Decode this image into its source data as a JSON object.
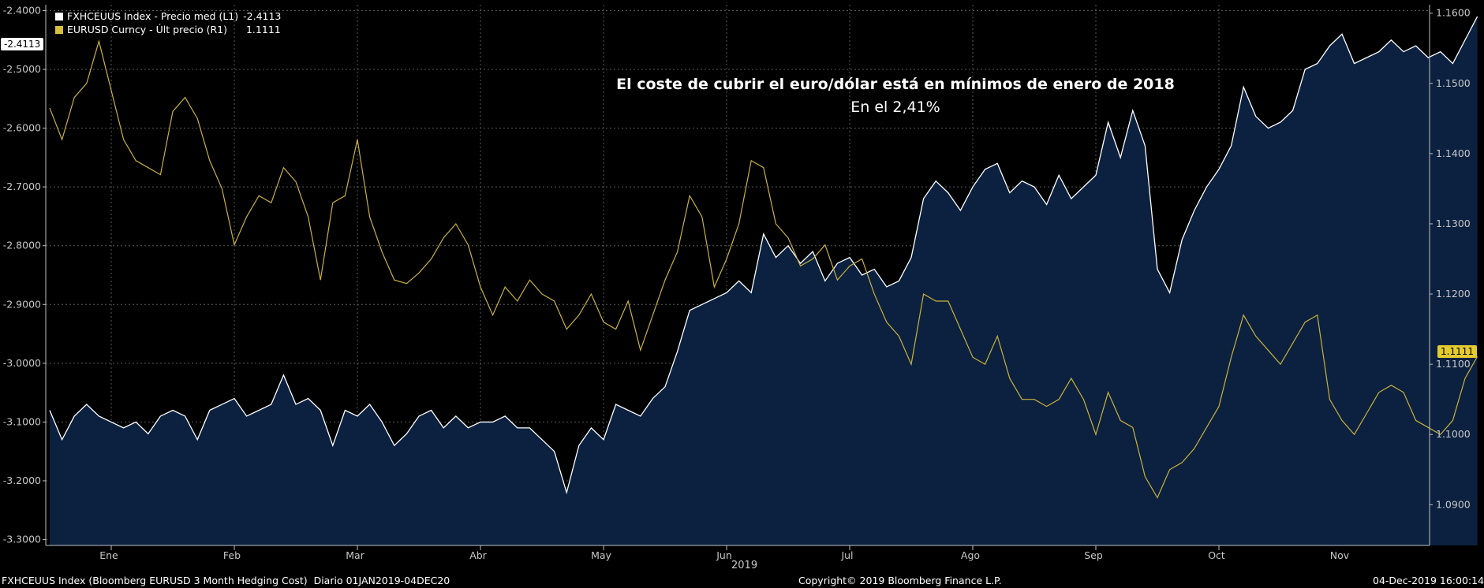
{
  "legend": {
    "items": [
      {
        "label": "FXHCEUUS Index - Precio med (L1)",
        "value": "-2.4113",
        "color": "#ffffff"
      },
      {
        "label": "EURUSD Curncy - Últ precio (R1)",
        "value": "1.1111",
        "color": "#d9c13a"
      }
    ]
  },
  "title": "El coste de cubrir el euro/dólar está en mínimos de enero de 2018",
  "subtitle": "En el 2,41%",
  "badges": {
    "left": "-2.4113",
    "right": "1.1111"
  },
  "year_label": "2019",
  "footer": {
    "left": "FXHCEUUS Index (Bloomberg EURUSD 3 Month Hedging Cost)  Diario 01JAN2019-04DEC20",
    "center": "Copyright© 2019 Bloomberg Finance L.P.",
    "right": "04-Dec-2019 16:00:14"
  },
  "colors": {
    "background": "#000000",
    "area_fill": "#0c2140",
    "hedge_line": "#ffffff",
    "eurusd_line": "#c9b23c",
    "grid": "#5a5a5a"
  },
  "chart_data": {
    "type": "line",
    "x_labels": [
      "Ene",
      "Feb",
      "Mar",
      "Abr",
      "May",
      "Jun",
      "Jul",
      "Ago",
      "Sep",
      "Oct",
      "Nov"
    ],
    "x_range": [
      0,
      11.6
    ],
    "left_axis": {
      "range": [
        -3.31,
        -2.39
      ],
      "ticks": [
        "-2.4000",
        "-2.5000",
        "-2.6000",
        "-2.7000",
        "-2.8000",
        "-2.9000",
        "-3.0000",
        "-3.1000",
        "-3.2000",
        "-3.3000"
      ]
    },
    "right_axis": {
      "range": [
        1.0842,
        1.1612
      ],
      "ticks": [
        "1.0900",
        "1.1000",
        "1.1100",
        "1.1200",
        "1.1300",
        "1.1400",
        "1.1500",
        "1.1600"
      ]
    },
    "grid": true,
    "series": [
      {
        "name": "FXHCEUUS Index - Precio med (L1)",
        "axis": "left",
        "style": "area",
        "x": [
          0,
          0.1,
          0.2,
          0.3,
          0.4,
          0.5,
          0.6,
          0.7,
          0.8,
          0.9,
          1.0,
          1.1,
          1.2,
          1.3,
          1.4,
          1.5,
          1.6,
          1.7,
          1.8,
          1.9,
          2.0,
          2.1,
          2.2,
          2.3,
          2.4,
          2.5,
          2.6,
          2.7,
          2.8,
          2.9,
          3.0,
          3.1,
          3.2,
          3.3,
          3.4,
          3.5,
          3.6,
          3.7,
          3.8,
          3.9,
          4.0,
          4.1,
          4.2,
          4.3,
          4.4,
          4.5,
          4.6,
          4.7,
          4.8,
          4.9,
          5.0,
          5.1,
          5.2,
          5.3,
          5.4,
          5.5,
          5.6,
          5.7,
          5.8,
          5.9,
          6.0,
          6.1,
          6.2,
          6.3,
          6.4,
          6.5,
          6.6,
          6.7,
          6.8,
          6.9,
          7.0,
          7.1,
          7.2,
          7.3,
          7.4,
          7.5,
          7.6,
          7.7,
          7.8,
          7.9,
          8.0,
          8.1,
          8.2,
          8.3,
          8.4,
          8.5,
          8.6,
          8.7,
          8.8,
          8.9,
          9.0,
          9.1,
          9.2,
          9.3,
          9.4,
          9.5,
          9.6,
          9.7,
          9.8,
          9.9,
          10.0,
          10.1,
          10.2,
          10.3,
          10.4,
          10.5,
          10.6,
          10.7,
          10.8,
          10.9,
          11.0,
          11.1,
          11.2,
          11.3,
          11.4,
          11.5,
          11.6
        ],
        "values": [
          -3.08,
          -3.13,
          -3.09,
          -3.07,
          -3.09,
          -3.1,
          -3.11,
          -3.1,
          -3.12,
          -3.09,
          -3.08,
          -3.09,
          -3.13,
          -3.08,
          -3.07,
          -3.06,
          -3.09,
          -3.08,
          -3.07,
          -3.02,
          -3.07,
          -3.06,
          -3.08,
          -3.14,
          -3.08,
          -3.09,
          -3.07,
          -3.1,
          -3.14,
          -3.12,
          -3.09,
          -3.08,
          -3.11,
          -3.09,
          -3.11,
          -3.1,
          -3.1,
          -3.09,
          -3.11,
          -3.11,
          -3.13,
          -3.15,
          -3.22,
          -3.14,
          -3.11,
          -3.13,
          -3.07,
          -3.08,
          -3.09,
          -3.06,
          -3.04,
          -2.98,
          -2.91,
          -2.9,
          -2.89,
          -2.88,
          -2.86,
          -2.88,
          -2.78,
          -2.82,
          -2.8,
          -2.83,
          -2.81,
          -2.86,
          -2.83,
          -2.82,
          -2.85,
          -2.84,
          -2.87,
          -2.86,
          -2.82,
          -2.72,
          -2.69,
          -2.71,
          -2.74,
          -2.7,
          -2.67,
          -2.66,
          -2.71,
          -2.69,
          -2.7,
          -2.73,
          -2.68,
          -2.72,
          -2.7,
          -2.68,
          -2.59,
          -2.65,
          -2.57,
          -2.63,
          -2.84,
          -2.88,
          -2.79,
          -2.74,
          -2.7,
          -2.67,
          -2.63,
          -2.53,
          -2.58,
          -2.6,
          -2.59,
          -2.57,
          -2.5,
          -2.49,
          -2.46,
          -2.44,
          -2.49,
          -2.48,
          -2.47,
          -2.45,
          -2.47,
          -2.46,
          -2.48,
          -2.47,
          -2.49,
          -2.45,
          -2.41
        ]
      },
      {
        "name": "EURUSD Curncy - Últ precio (R1)",
        "axis": "right",
        "style": "line",
        "x": [
          0,
          0.1,
          0.2,
          0.3,
          0.4,
          0.5,
          0.6,
          0.7,
          0.8,
          0.9,
          1.0,
          1.1,
          1.2,
          1.3,
          1.4,
          1.5,
          1.6,
          1.7,
          1.8,
          1.9,
          2.0,
          2.1,
          2.2,
          2.3,
          2.4,
          2.5,
          2.6,
          2.7,
          2.8,
          2.9,
          3.0,
          3.1,
          3.2,
          3.3,
          3.4,
          3.5,
          3.6,
          3.7,
          3.8,
          3.9,
          4.0,
          4.1,
          4.2,
          4.3,
          4.4,
          4.5,
          4.6,
          4.7,
          4.8,
          4.9,
          5.0,
          5.1,
          5.2,
          5.3,
          5.4,
          5.5,
          5.6,
          5.7,
          5.8,
          5.9,
          6.0,
          6.1,
          6.2,
          6.3,
          6.4,
          6.5,
          6.6,
          6.7,
          6.8,
          6.9,
          7.0,
          7.1,
          7.2,
          7.3,
          7.4,
          7.5,
          7.6,
          7.7,
          7.8,
          7.9,
          8.0,
          8.1,
          8.2,
          8.3,
          8.4,
          8.5,
          8.6,
          8.7,
          8.8,
          8.9,
          9.0,
          9.1,
          9.2,
          9.3,
          9.4,
          9.5,
          9.6,
          9.7,
          9.8,
          9.9,
          10.0,
          10.1,
          10.2,
          10.3,
          10.4,
          10.5,
          10.6,
          10.7,
          10.8,
          10.9,
          11.0,
          11.1,
          11.2,
          11.3,
          11.4,
          11.5,
          11.6
        ],
        "values": [
          1.1465,
          1.142,
          1.148,
          1.15,
          1.156,
          1.149,
          1.142,
          1.139,
          1.138,
          1.137,
          1.146,
          1.148,
          1.145,
          1.139,
          1.135,
          1.127,
          1.131,
          1.134,
          1.133,
          1.138,
          1.136,
          1.131,
          1.122,
          1.133,
          1.134,
          1.142,
          1.131,
          1.126,
          1.122,
          1.1215,
          1.123,
          1.125,
          1.128,
          1.13,
          1.127,
          1.121,
          1.117,
          1.121,
          1.119,
          1.122,
          1.12,
          1.119,
          1.115,
          1.117,
          1.12,
          1.116,
          1.115,
          1.119,
          1.112,
          1.117,
          1.122,
          1.126,
          1.134,
          1.131,
          1.121,
          1.125,
          1.13,
          1.139,
          1.138,
          1.13,
          1.128,
          1.124,
          1.125,
          1.127,
          1.122,
          1.124,
          1.125,
          1.12,
          1.116,
          1.114,
          1.11,
          1.12,
          1.119,
          1.119,
          1.115,
          1.111,
          1.11,
          1.114,
          1.108,
          1.105,
          1.105,
          1.104,
          1.105,
          1.108,
          1.105,
          1.1,
          1.106,
          1.102,
          1.101,
          1.094,
          1.091,
          1.095,
          1.096,
          1.098,
          1.101,
          1.104,
          1.111,
          1.117,
          1.114,
          1.112,
          1.11,
          1.113,
          1.116,
          1.117,
          1.105,
          1.102,
          1.1,
          1.103,
          1.106,
          1.107,
          1.106,
          1.102,
          1.101,
          1.1,
          1.102,
          1.108,
          1.1111
        ]
      }
    ]
  }
}
